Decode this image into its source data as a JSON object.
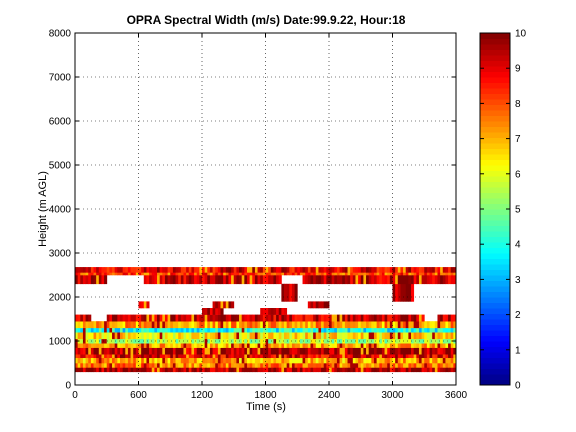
{
  "chart_data": {
    "type": "heatmap",
    "title": "OPRA Spectral Width (m/s)  Date:99.9.22, Hour:18",
    "xlabel": "Time (s)",
    "ylabel": "Height (m AGL)",
    "xlim": [
      0,
      3600
    ],
    "ylim": [
      0,
      8000
    ],
    "xticks": [
      0,
      600,
      1200,
      1800,
      2400,
      3000,
      3600
    ],
    "yticks": [
      0,
      1000,
      2000,
      3000,
      4000,
      5000,
      6000,
      7000,
      8000
    ],
    "colorbar": {
      "min": 0,
      "max": 10,
      "ticks": [
        0,
        1,
        2,
        3,
        4,
        5,
        6,
        7,
        8,
        9,
        10
      ],
      "colormap": "jet"
    },
    "grid": true,
    "bands": [
      {
        "height_range": [
          300,
          400
        ],
        "value": 9.5,
        "gaps": []
      },
      {
        "height_range": [
          400,
          500
        ],
        "value": 7.5,
        "gaps": []
      },
      {
        "height_range": [
          500,
          620
        ],
        "value": 7.0,
        "gaps": []
      },
      {
        "height_range": [
          620,
          700
        ],
        "value": 9.0,
        "gaps": []
      },
      {
        "height_range": [
          700,
          850
        ],
        "value": 9.6,
        "gaps": []
      },
      {
        "height_range": [
          850,
          950
        ],
        "value": 7.0,
        "gaps": []
      },
      {
        "height_range": [
          950,
          1050
        ],
        "value": 5.5,
        "gaps": []
      },
      {
        "height_range": [
          1050,
          1200
        ],
        "value": 6.5,
        "gaps": []
      },
      {
        "height_range": [
          1200,
          1300
        ],
        "value": 3.8,
        "gaps": []
      },
      {
        "height_range": [
          1300,
          1450
        ],
        "value": 7.2,
        "gaps": []
      },
      {
        "height_range": [
          1450,
          1600
        ],
        "value": 9.3,
        "gaps": [
          [
            150,
            300
          ],
          [
            3300,
            3420
          ]
        ]
      },
      {
        "height_range": [
          1600,
          1750
        ],
        "value": 9.6,
        "gaps": [
          [
            0,
            1200
          ],
          [
            1400,
            1750
          ],
          [
            2000,
            3600
          ]
        ]
      },
      {
        "height_range": [
          1750,
          1900
        ],
        "value": 9.6,
        "gaps": [
          [
            0,
            600
          ],
          [
            700,
            1300
          ],
          [
            1500,
            2200
          ],
          [
            2400,
            3600
          ]
        ]
      },
      {
        "height_range": [
          1900,
          2300
        ],
        "value": 9.6,
        "gaps": [
          [
            0,
            1950
          ],
          [
            2100,
            3000
          ],
          [
            3200,
            3600
          ]
        ]
      },
      {
        "height_range": [
          2300,
          2500
        ],
        "value": 9.4,
        "gaps": [
          [
            300,
            650
          ],
          [
            1950,
            2150
          ]
        ]
      },
      {
        "height_range": [
          2500,
          2560
        ],
        "value": 8.2,
        "gaps": []
      },
      {
        "height_range": [
          2560,
          2680
        ],
        "value": 9.0,
        "gaps": []
      }
    ]
  }
}
